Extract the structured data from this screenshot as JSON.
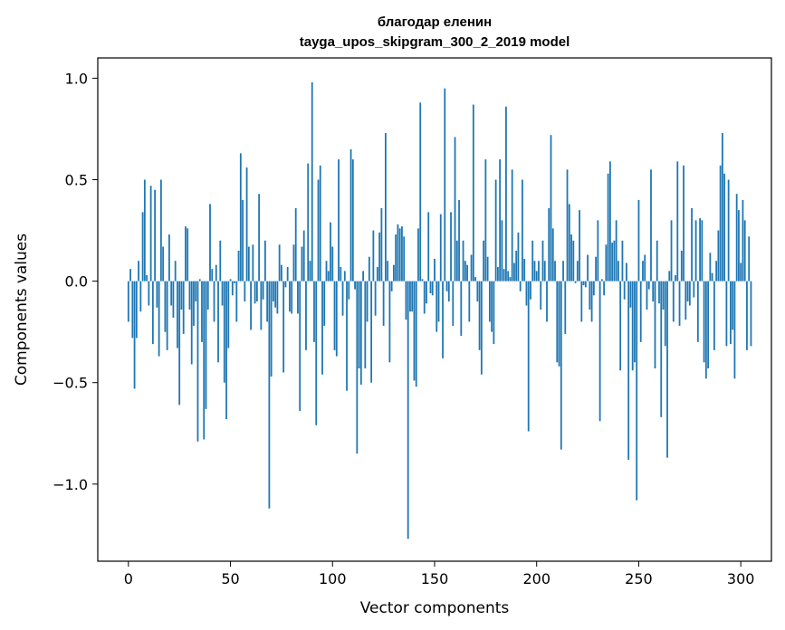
{
  "chart_data": {
    "type": "bar",
    "title_line1": "благодар еленин",
    "title_line2": "tayga_upos_skipgram_300_2_2019 model",
    "xlabel": "Vector components",
    "ylabel": "Components values",
    "xlim": [
      -15,
      315
    ],
    "ylim": [
      -1.38,
      1.1
    ],
    "xticks": [
      0,
      50,
      100,
      150,
      200,
      250,
      300
    ],
    "xtick_labels": [
      "0",
      "50",
      "100",
      "150",
      "200",
      "250",
      "300"
    ],
    "yticks": [
      1.0,
      0.5,
      0.0,
      -0.5,
      -1.0
    ],
    "ytick_labels": [
      "1.0",
      "0.5",
      "0.0",
      "−0.5",
      "−1.0"
    ],
    "bar_color": "#1f77b4",
    "values": [
      -0.2,
      0.06,
      -0.28,
      -0.53,
      -0.28,
      0.1,
      -0.15,
      0.34,
      0.5,
      0.03,
      -0.12,
      0.47,
      -0.31,
      0.45,
      -0.13,
      -0.37,
      0.5,
      0.17,
      -0.25,
      -0.34,
      0.23,
      -0.12,
      -0.18,
      0.1,
      -0.33,
      -0.61,
      -0.14,
      -0.26,
      0.27,
      0.26,
      -0.14,
      -0.41,
      -0.22,
      -0.1,
      -0.79,
      0.01,
      -0.3,
      -0.78,
      -0.63,
      -0.14,
      0.38,
      0.06,
      -0.2,
      0.08,
      -0.4,
      0.2,
      -0.12,
      -0.5,
      -0.68,
      -0.33,
      0.01,
      -0.07,
      -0.01,
      -0.2,
      0.15,
      0.63,
      0.4,
      -0.1,
      0.56,
      0.17,
      -0.24,
      0.18,
      -0.11,
      -0.1,
      0.43,
      -0.24,
      -0.09,
      0.2,
      -0.2,
      -1.12,
      -0.47,
      -0.1,
      -0.13,
      -0.16,
      0.18,
      0.08,
      -0.45,
      -0.03,
      0.07,
      -0.15,
      -0.16,
      0.18,
      0.36,
      -0.16,
      -0.64,
      0.17,
      0.25,
      -0.34,
      0.58,
      0.1,
      0.98,
      -0.3,
      -0.71,
      0.5,
      0.57,
      -0.46,
      -0.22,
      0.1,
      0.05,
      0.29,
      0.17,
      -0.34,
      -0.37,
      0.6,
      0.07,
      -0.17,
      0.05,
      -0.54,
      -0.09,
      0.65,
      0.6,
      -0.04,
      -0.85,
      -0.43,
      -0.51,
      0.05,
      -0.43,
      -0.2,
      0.12,
      -0.5,
      0.25,
      -0.17,
      0.07,
      0.24,
      0.36,
      -0.22,
      0.73,
      0.1,
      -0.4,
      -0.05,
      0.08,
      0.23,
      0.28,
      0.26,
      0.27,
      0.22,
      -0.19,
      -1.27,
      -0.15,
      -0.15,
      -0.49,
      -0.52,
      0.26,
      0.88,
      0.01,
      -0.16,
      -0.11,
      0.34,
      -0.06,
      -0.07,
      0.11,
      -0.25,
      -0.2,
      0.33,
      -0.38,
      0.95,
      -0.05,
      -0.1,
      0.34,
      -0.22,
      0.71,
      0.2,
      0.4,
      -0.27,
      0.2,
      0.1,
      0.08,
      -0.2,
      0.13,
      0.87,
      0.02,
      -0.1,
      -0.34,
      -0.46,
      0.2,
      0.6,
      0.12,
      -0.2,
      -0.25,
      -0.31,
      0.5,
      0.07,
      0.6,
      0.3,
      0.06,
      0.86,
      0.05,
      0.02,
      0.55,
      0.09,
      0.15,
      0.24,
      -0.05,
      0.5,
      0.11,
      -0.12,
      -0.74,
      -0.09,
      0.2,
      0.1,
      0.05,
      0.1,
      -0.14,
      0.2,
      0.1,
      -0.2,
      0.36,
      0.72,
      0.26,
      0.1,
      -0.4,
      -0.42,
      -0.83,
      0.1,
      -0.26,
      0.55,
      0.38,
      0.23,
      0.2,
      -0.01,
      0.1,
      0.35,
      -0.2,
      -0.02,
      -0.03,
      0.13,
      -0.14,
      -0.2,
      -0.07,
      0.12,
      0.3,
      -0.69,
      0.01,
      -0.07,
      0.18,
      0.53,
      0.59,
      0.19,
      0.2,
      0.3,
      0.1,
      -0.44,
      0.2,
      -0.09,
      0.09,
      -0.88,
      -0.13,
      -0.44,
      -0.4,
      -1.08,
      0.4,
      -0.3,
      0.1,
      0.13,
      -0.14,
      -0.04,
      0.55,
      -0.1,
      -0.43,
      0.2,
      -0.11,
      -0.67,
      -0.14,
      -0.32,
      -0.87,
      0.05,
      0.3,
      -0.2,
      0.03,
      0.59,
      -0.22,
      0.15,
      0.57,
      -0.19,
      -0.1,
      -0.12,
      0.36,
      -0.08,
      0.3,
      -0.3,
      0.31,
      0.3,
      -0.4,
      -0.48,
      -0.43,
      0.14,
      0.04,
      -0.34,
      0.1,
      0.25,
      0.57,
      0.73,
      0.53,
      -0.32,
      0.5,
      -0.31,
      -0.24,
      -0.48,
      0.43,
      0.35,
      0.09,
      0.4,
      0.3,
      -0.34,
      0.22,
      -0.32
    ]
  }
}
